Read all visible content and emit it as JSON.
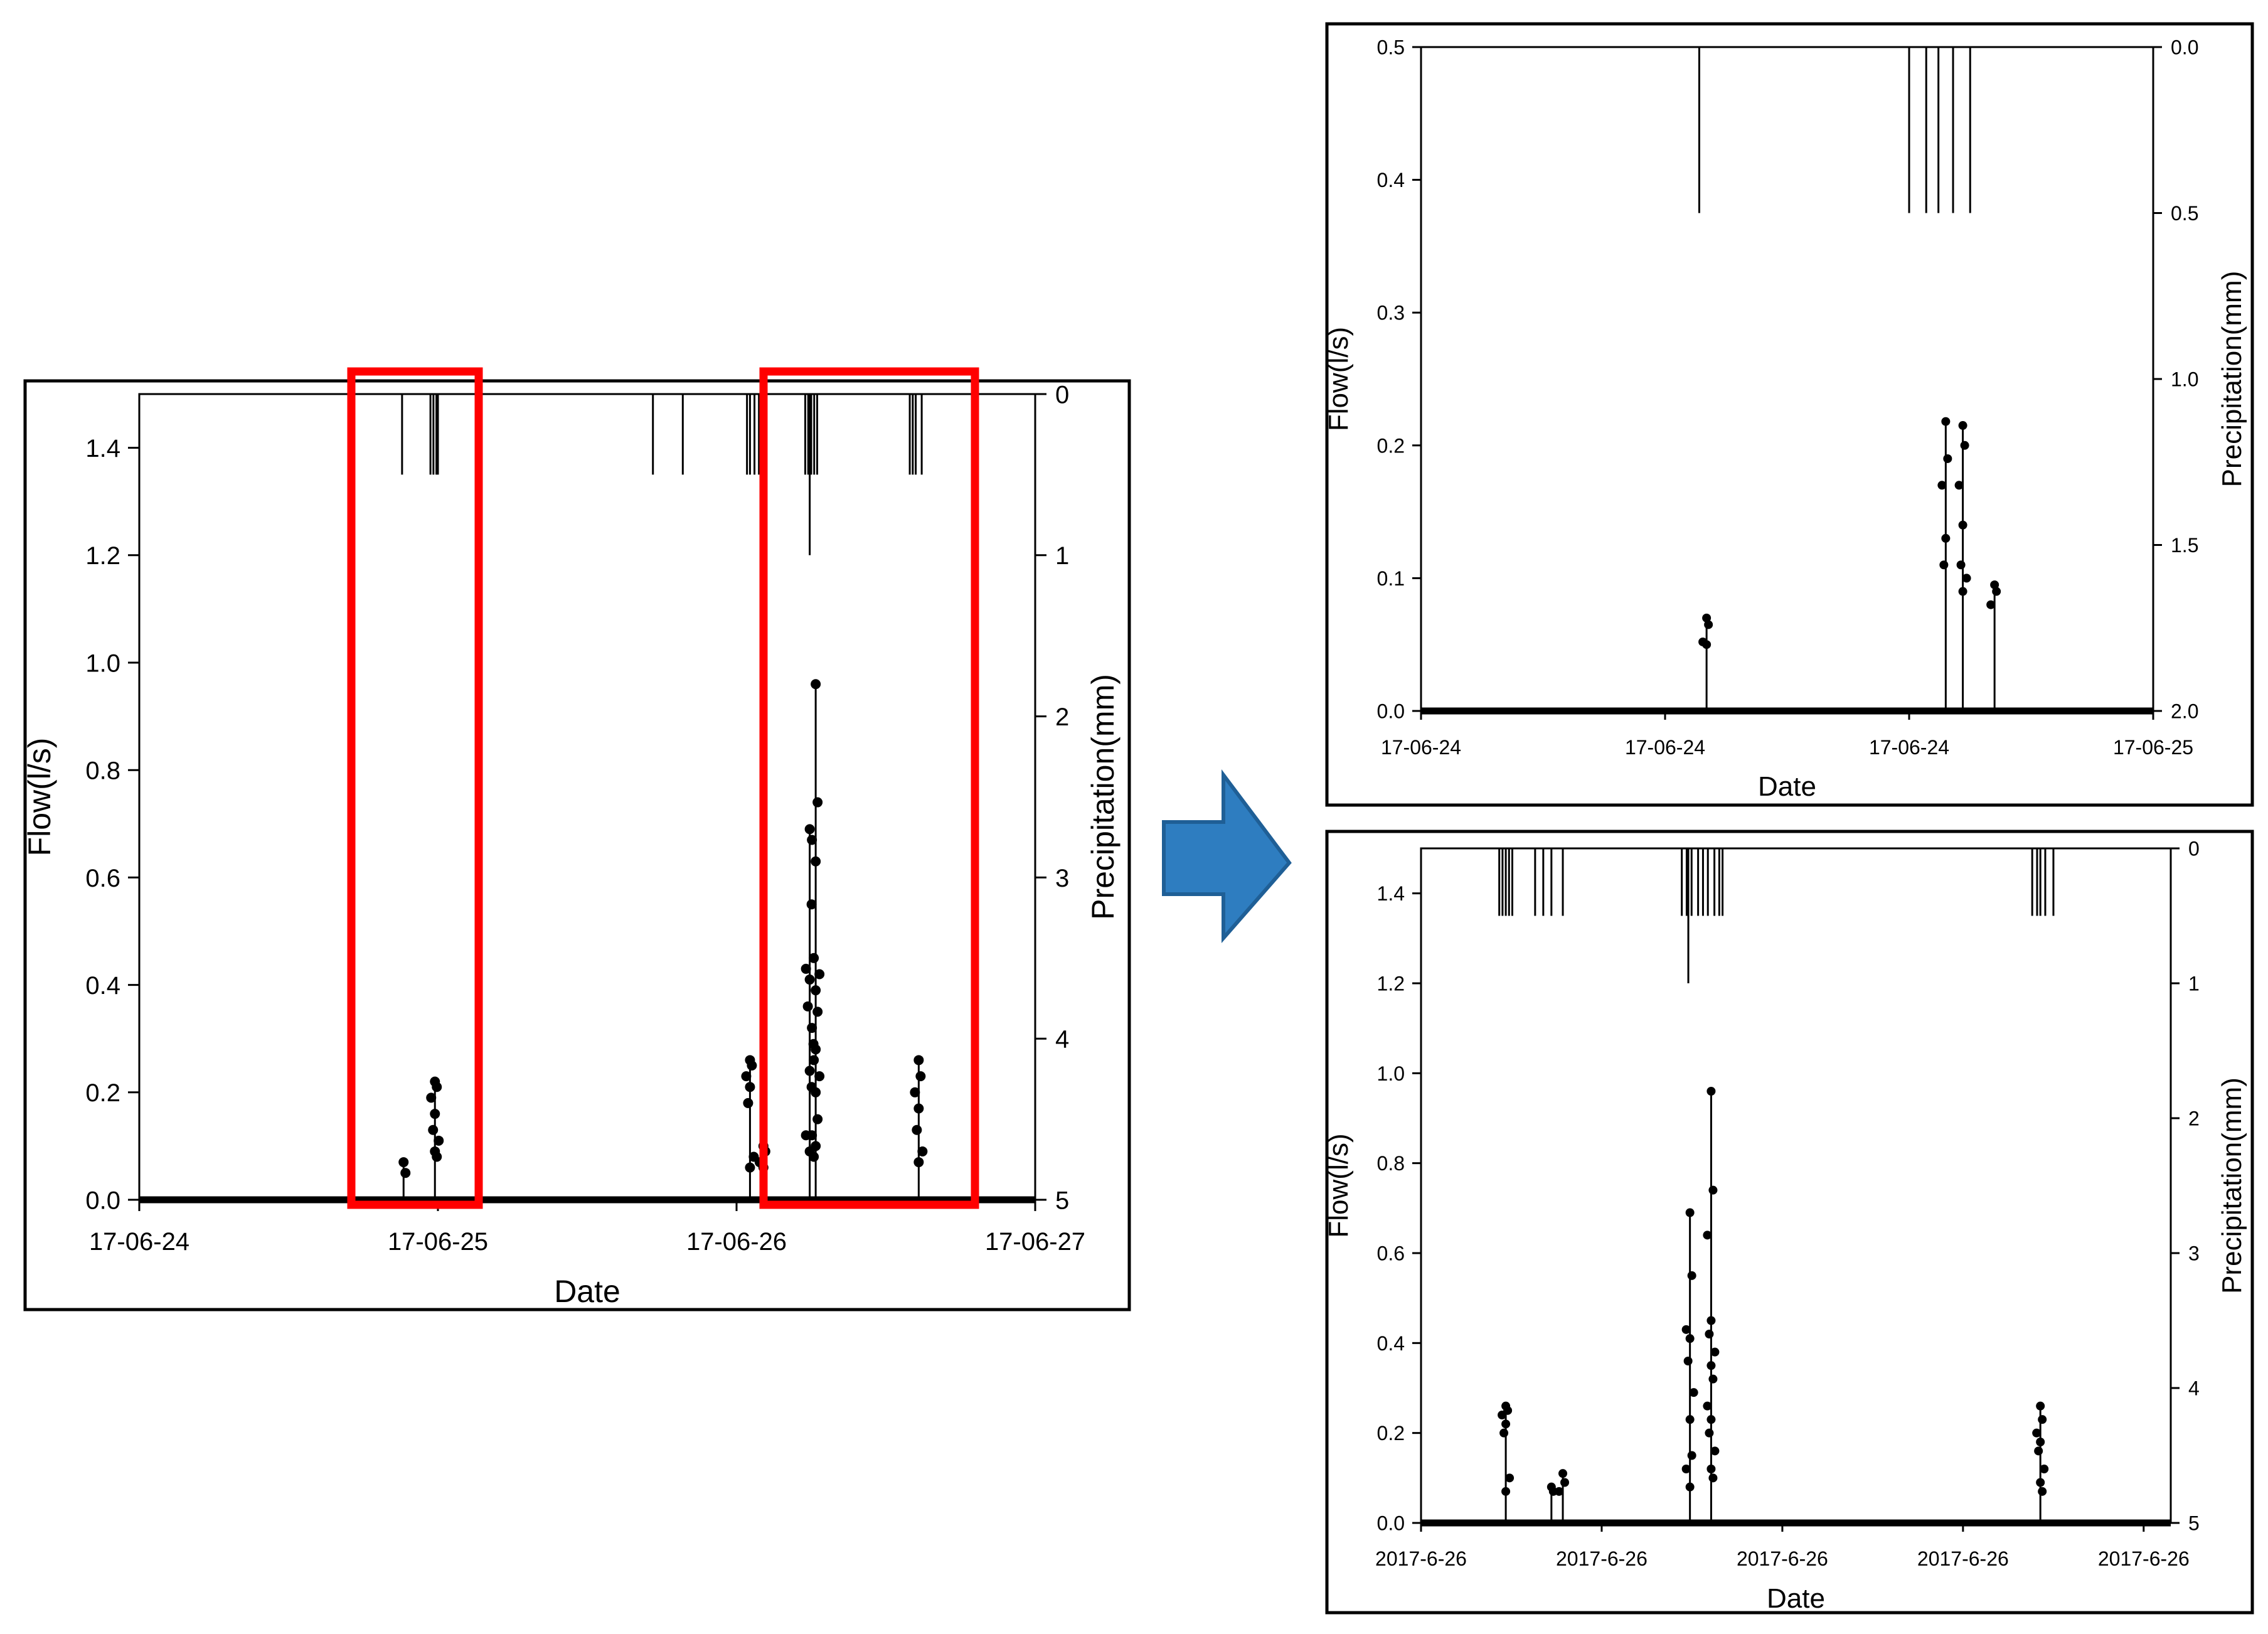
{
  "colors": {
    "highlight_box": "#ff0000",
    "arrow_fill": "#2e7dc0",
    "arrow_stroke": "#1f5f96",
    "ink": "#000000"
  },
  "chart_data": [
    {
      "id": "main",
      "type": "line",
      "xlabel": "Date",
      "ylabel": "Flow(l/s)",
      "y2label": "Precipitation(mm)",
      "xlim": [
        0,
        3
      ],
      "ylim": [
        0,
        1.5
      ],
      "y2lim": [
        0,
        5
      ],
      "y2_inverted": true,
      "x_tick_labels": [
        "17-06-24",
        "17-06-25",
        "17-06-26",
        "17-06-27"
      ],
      "y_tick_labels": [
        "0.0",
        "0.2",
        "0.4",
        "0.6",
        "0.8",
        "1.0",
        "1.2",
        "1.4"
      ],
      "y2_tick_labels": [
        "0",
        "1",
        "2",
        "3",
        "4",
        "5"
      ],
      "flow_events": [
        {
          "x": 0.885,
          "values": [
            0.07,
            0.05
          ]
        },
        {
          "x": 0.99,
          "values": [
            0.22,
            0.21,
            0.19,
            0.16,
            0.13,
            0.11,
            0.09,
            0.08
          ]
        },
        {
          "x": 2.045,
          "values": [
            0.26,
            0.25,
            0.23,
            0.21,
            0.18,
            0.08,
            0.06
          ]
        },
        {
          "x": 2.09,
          "values": [
            0.1,
            0.09,
            0.07,
            0.06
          ]
        },
        {
          "x": 2.245,
          "values": [
            0.69,
            0.55,
            0.43,
            0.41,
            0.36,
            0.29,
            0.24,
            0.21,
            0.12,
            0.09
          ]
        },
        {
          "x": 2.265,
          "values": [
            0.96,
            0.74,
            0.67,
            0.63,
            0.45,
            0.42,
            0.39,
            0.35,
            0.32,
            0.28,
            0.26,
            0.23,
            0.2,
            0.15,
            0.12,
            0.1,
            0.08
          ]
        },
        {
          "x": 2.61,
          "values": [
            0.26,
            0.23,
            0.2,
            0.17,
            0.13,
            0.09,
            0.07
          ]
        }
      ],
      "precip_events": [
        {
          "x": 0.88,
          "value": 0.5
        },
        {
          "x": 0.975,
          "value": 0.5
        },
        {
          "x": 0.985,
          "value": 0.5
        },
        {
          "x": 0.995,
          "value": 0.5
        },
        {
          "x": 1.0,
          "value": 0.5
        },
        {
          "x": 1.72,
          "value": 0.5
        },
        {
          "x": 1.82,
          "value": 0.5
        },
        {
          "x": 2.035,
          "value": 0.5
        },
        {
          "x": 2.045,
          "value": 0.5
        },
        {
          "x": 2.06,
          "value": 0.5
        },
        {
          "x": 2.075,
          "value": 0.5
        },
        {
          "x": 2.085,
          "value": 0.5
        },
        {
          "x": 2.23,
          "value": 0.5
        },
        {
          "x": 2.24,
          "value": 0.5
        },
        {
          "x": 2.245,
          "value": 1.0
        },
        {
          "x": 2.25,
          "value": 0.5
        },
        {
          "x": 2.26,
          "value": 0.5
        },
        {
          "x": 2.27,
          "value": 0.5
        },
        {
          "x": 2.58,
          "value": 0.5
        },
        {
          "x": 2.59,
          "value": 0.5
        },
        {
          "x": 2.6,
          "value": 0.5
        },
        {
          "x": 2.62,
          "value": 0.5
        }
      ]
    },
    {
      "id": "zoom1",
      "type": "line",
      "xlabel": "Date",
      "ylabel": "Flow(l/s)",
      "y2label": "Precipitation(mm)",
      "xlim": [
        0,
        3
      ],
      "ylim": [
        0,
        0.5
      ],
      "y2lim": [
        0,
        2.0
      ],
      "y2_inverted": true,
      "x_tick_labels": [
        "17-06-24",
        "17-06-24",
        "17-06-24",
        "17-06-25"
      ],
      "y_tick_labels": [
        "0.0",
        "0.1",
        "0.2",
        "0.3",
        "0.4",
        "0.5"
      ],
      "y2_tick_labels": [
        "0.0",
        "0.5",
        "1.0",
        "1.5",
        "2.0"
      ],
      "flow_events": [
        {
          "x": 1.17,
          "values": [
            0.07,
            0.065,
            0.052,
            0.05
          ]
        },
        {
          "x": 2.15,
          "values": [
            0.218,
            0.19,
            0.17,
            0.13,
            0.11
          ]
        },
        {
          "x": 2.22,
          "values": [
            0.215,
            0.2,
            0.17,
            0.14,
            0.11,
            0.1,
            0.09
          ]
        },
        {
          "x": 2.35,
          "values": [
            0.095,
            0.09,
            0.08
          ]
        }
      ],
      "precip_events": [
        {
          "x": 1.14,
          "value": 0.5
        },
        {
          "x": 2.0,
          "value": 0.5
        },
        {
          "x": 2.07,
          "value": 0.5
        },
        {
          "x": 2.12,
          "value": 0.5
        },
        {
          "x": 2.18,
          "value": 0.5
        },
        {
          "x": 2.25,
          "value": 0.5
        }
      ]
    },
    {
      "id": "zoom2",
      "type": "line",
      "xlabel": "Date",
      "ylabel": "Flow(l/s)",
      "y2label": "Precipitation(mm)",
      "xlim": [
        0,
        4.6
      ],
      "ylim": [
        0,
        1.5
      ],
      "y2lim": [
        0,
        5
      ],
      "y2_inverted": true,
      "x_tick_labels": [
        "2017-6-26",
        "2017-6-26",
        "2017-6-26",
        "2017-6-26",
        "2017-6-26"
      ],
      "y_tick_labels": [
        "0.0",
        "0.2",
        "0.4",
        "0.6",
        "0.8",
        "1.0",
        "1.2",
        "1.4"
      ],
      "y2_tick_labels": [
        "0",
        "1",
        "2",
        "3",
        "4",
        "5"
      ],
      "flow_events": [
        {
          "x": 0.52,
          "values": [
            0.26,
            0.25,
            0.24,
            0.22,
            0.2,
            0.1,
            0.07
          ]
        },
        {
          "x": 0.8,
          "values": [
            0.08,
            0.07
          ]
        },
        {
          "x": 0.87,
          "values": [
            0.11,
            0.09,
            0.07
          ]
        },
        {
          "x": 1.65,
          "values": [
            0.69,
            0.55,
            0.43,
            0.41,
            0.36,
            0.29,
            0.23,
            0.15,
            0.12,
            0.08
          ]
        },
        {
          "x": 1.78,
          "values": [
            0.96,
            0.74,
            0.64,
            0.45,
            0.42,
            0.38,
            0.35,
            0.32,
            0.26,
            0.23,
            0.2,
            0.16,
            0.12,
            0.1
          ]
        },
        {
          "x": 3.8,
          "values": [
            0.26,
            0.23,
            0.2,
            0.18,
            0.16,
            0.12,
            0.09,
            0.07
          ]
        }
      ],
      "precip_events": [
        {
          "x": 0.48,
          "value": 0.5
        },
        {
          "x": 0.5,
          "value": 0.5
        },
        {
          "x": 0.52,
          "value": 0.5
        },
        {
          "x": 0.54,
          "value": 0.5
        },
        {
          "x": 0.56,
          "value": 0.5
        },
        {
          "x": 0.7,
          "value": 0.5
        },
        {
          "x": 0.75,
          "value": 0.5
        },
        {
          "x": 0.8,
          "value": 0.5
        },
        {
          "x": 0.87,
          "value": 0.5
        },
        {
          "x": 1.6,
          "value": 0.5
        },
        {
          "x": 1.63,
          "value": 0.5
        },
        {
          "x": 1.64,
          "value": 1.0
        },
        {
          "x": 1.66,
          "value": 0.5
        },
        {
          "x": 1.7,
          "value": 0.5
        },
        {
          "x": 1.73,
          "value": 0.5
        },
        {
          "x": 1.76,
          "value": 0.5
        },
        {
          "x": 1.8,
          "value": 0.5
        },
        {
          "x": 1.83,
          "value": 0.5
        },
        {
          "x": 1.85,
          "value": 0.5
        },
        {
          "x": 3.75,
          "value": 0.5
        },
        {
          "x": 3.78,
          "value": 0.5
        },
        {
          "x": 3.8,
          "value": 0.5
        },
        {
          "x": 3.83,
          "value": 0.5
        },
        {
          "x": 3.88,
          "value": 0.5
        }
      ]
    }
  ]
}
